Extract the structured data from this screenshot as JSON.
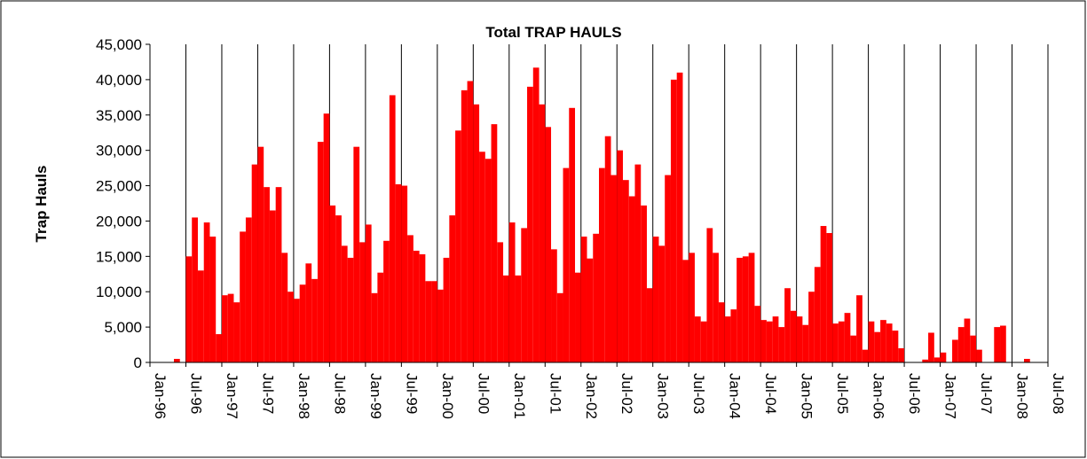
{
  "chart_data": {
    "type": "bar",
    "title": "Total  TRAP HAULS",
    "y_label": "Trap Hauls",
    "color": "#ff0000",
    "categories": [
      "Jan-96",
      null,
      null,
      null,
      null,
      null,
      "Jul-96",
      null,
      null,
      null,
      null,
      null,
      "Jan-97",
      null,
      null,
      null,
      null,
      null,
      "Jul-97",
      null,
      null,
      null,
      null,
      null,
      "Jan-98",
      null,
      null,
      null,
      null,
      null,
      "Jul-98",
      null,
      null,
      null,
      null,
      null,
      "Jan-99",
      null,
      null,
      null,
      null,
      null,
      "Jul-99",
      null,
      null,
      null,
      null,
      null,
      "Jan-00",
      null,
      null,
      null,
      null,
      null,
      "Jul-00",
      null,
      null,
      null,
      null,
      null,
      "Jan-01",
      null,
      null,
      null,
      null,
      null,
      "Jul-01",
      null,
      null,
      null,
      null,
      null,
      "Jan-02",
      null,
      null,
      null,
      null,
      null,
      "Jul-02",
      null,
      null,
      null,
      null,
      null,
      "Jan-03",
      null,
      null,
      null,
      null,
      null,
      "Jul-03",
      null,
      null,
      null,
      null,
      null,
      "Jan-04",
      null,
      null,
      null,
      null,
      null,
      "Jul-04",
      null,
      null,
      null,
      null,
      null,
      "Jan-05",
      null,
      null,
      null,
      null,
      null,
      "Jul-05",
      null,
      null,
      null,
      null,
      null,
      "Jan-06",
      null,
      null,
      null,
      null,
      null,
      "Jul-06",
      null,
      null,
      null,
      null,
      null,
      "Jan-07",
      null,
      null,
      null,
      null,
      null,
      "Jul-07",
      null,
      null,
      null,
      null,
      null,
      "Jan-08",
      null,
      null,
      null,
      null,
      null,
      "Jul-08"
    ],
    "values": [
      null,
      null,
      null,
      null,
      500,
      null,
      15000,
      20500,
      13000,
      19800,
      17800,
      4000,
      9500,
      9700,
      8500,
      18500,
      20500,
      28000,
      30500,
      24800,
      21500,
      24800,
      15500,
      10000,
      9000,
      11000,
      14000,
      11800,
      31200,
      35200,
      22200,
      20800,
      16500,
      14800,
      30500,
      17000,
      19500,
      9800,
      12700,
      17200,
      37800,
      25200,
      25000,
      18000,
      15800,
      15300,
      11500,
      11500,
      10300,
      14800,
      20800,
      32800,
      38500,
      39800,
      36500,
      29800,
      28800,
      33700,
      17000,
      12300,
      19800,
      12300,
      19000,
      39000,
      41700,
      36500,
      33300,
      16000,
      9800,
      27500,
      36000,
      12700,
      17800,
      14700,
      18200,
      27500,
      32000,
      26500,
      30000,
      25800,
      23500,
      28000,
      22200,
      10500,
      17800,
      16500,
      26500,
      40000,
      41000,
      14500,
      15500,
      6500,
      5800,
      19000,
      15500,
      8500,
      6500,
      7500,
      14800,
      15000,
      15500,
      8000,
      6000,
      5800,
      6500,
      5000,
      10500,
      7300,
      6500,
      5300,
      10000,
      13500,
      19300,
      18300,
      5500,
      5800,
      7000,
      3800,
      9500,
      1800,
      5800,
      4300,
      6000,
      5500,
      4500,
      2000,
      null,
      null,
      null,
      400,
      4200,
      700,
      1400,
      null,
      3200,
      5000,
      6200,
      3800,
      1800,
      null,
      null,
      5000,
      5200,
      null,
      null,
      null,
      500,
      null,
      null,
      null,
      null
    ],
    "ylim": [
      0,
      45000
    ],
    "yticks": [
      0,
      {
        "value": 5000,
        "label": "5,000"
      },
      {
        "value": 10000,
        "label": "10,000"
      },
      {
        "value": 15000,
        "label": "15,000"
      },
      {
        "value": 20000,
        "label": "20,000"
      },
      {
        "value": 25000,
        "label": "25,000"
      },
      {
        "value": 30000,
        "label": "30,000"
      },
      {
        "value": 35000,
        "label": "35,000"
      },
      {
        "value": 40000,
        "label": "40,000"
      },
      {
        "value": 45000,
        "label": "45,000"
      }
    ],
    "x_grid": true
  }
}
